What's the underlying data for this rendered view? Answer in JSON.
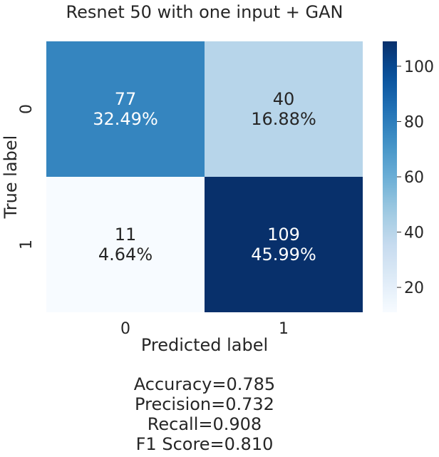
{
  "chart_data": {
    "type": "heatmap",
    "title": "Resnet 50 with one input + GAN",
    "xlabel": "Predicted label",
    "ylabel": "True label",
    "x_categories": [
      "0",
      "1"
    ],
    "y_categories": [
      "0",
      "1"
    ],
    "cells": [
      {
        "row": 0,
        "col": 0,
        "value": 77,
        "percent": "32.49%"
      },
      {
        "row": 0,
        "col": 1,
        "value": 40,
        "percent": "16.88%"
      },
      {
        "row": 1,
        "col": 0,
        "value": 11,
        "percent": "4.64%"
      },
      {
        "row": 1,
        "col": 1,
        "value": 109,
        "percent": "45.99%"
      }
    ],
    "colormap": "Blues",
    "colorbar": {
      "vmin": 11,
      "vmax": 109,
      "ticks": [
        20,
        40,
        60,
        80,
        100
      ]
    },
    "grid": false
  },
  "metrics": [
    "Accuracy=0.785",
    "Precision=0.732",
    "Recall=0.908",
    "F1 Score=0.810"
  ]
}
